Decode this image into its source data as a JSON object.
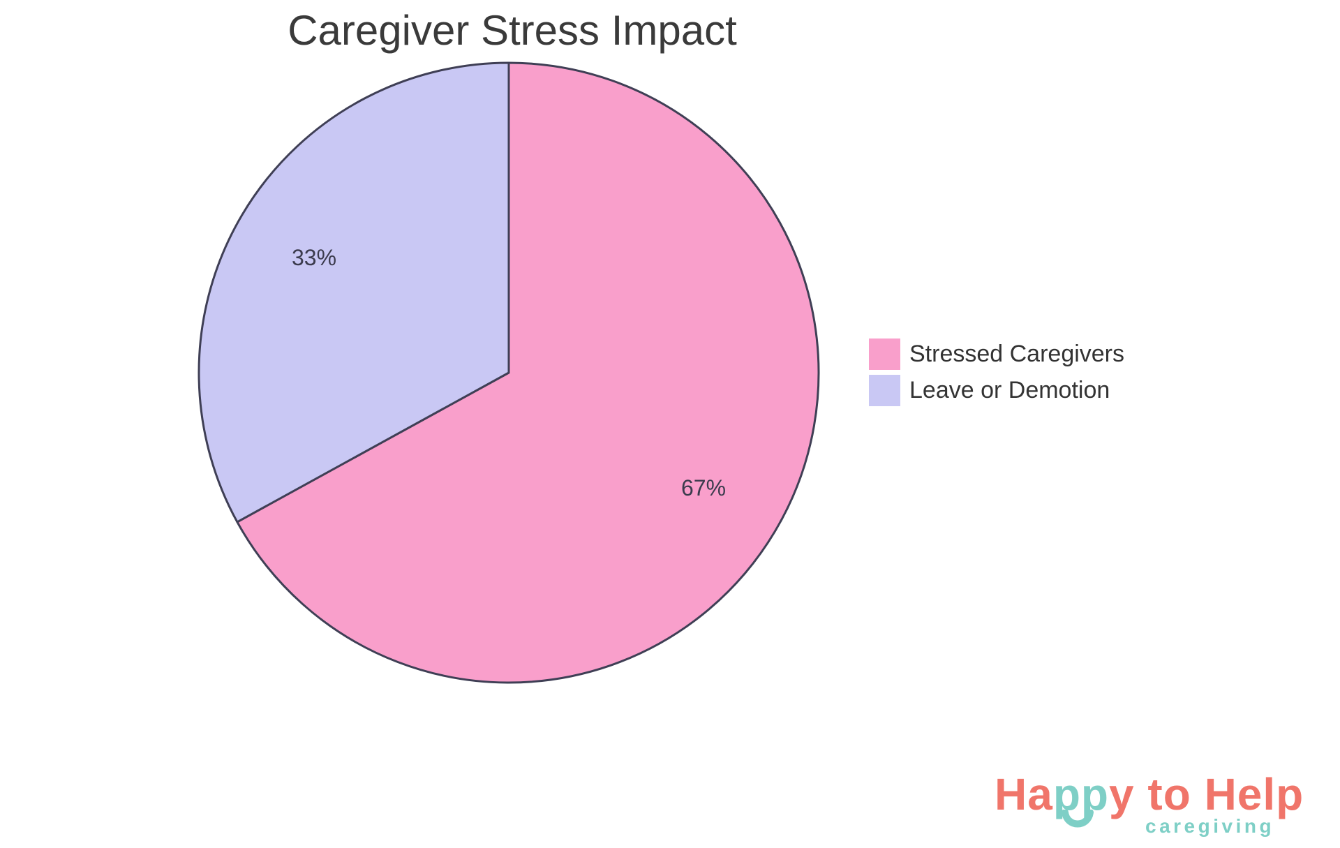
{
  "chart": {
    "title": "Caregiver Stress Impact",
    "chart_data": {
      "type": "pie",
      "labels": [
        "Stressed Caregivers",
        "Leave or Demotion"
      ],
      "values": [
        67,
        33
      ],
      "percent_labels": [
        "67%",
        "33%"
      ],
      "colors": [
        "#F99FCB",
        "#C9C8F4"
      ],
      "border_color": "#3F3F55",
      "start_angle": "top",
      "direction": "clockwise",
      "legend_position": "right",
      "background": "#FFFFFF"
    }
  },
  "legend": {
    "items": [
      {
        "label": "Stressed Caregivers",
        "color": "#F99FCB"
      },
      {
        "label": "Leave or Demotion",
        "color": "#C9C8F4"
      }
    ]
  },
  "logo": {
    "part1": "Ha",
    "part2": "pp",
    "part3": "y to Help",
    "subtitle": "caregiving",
    "coral": "#F0756A",
    "teal": "#7ECFC6"
  }
}
